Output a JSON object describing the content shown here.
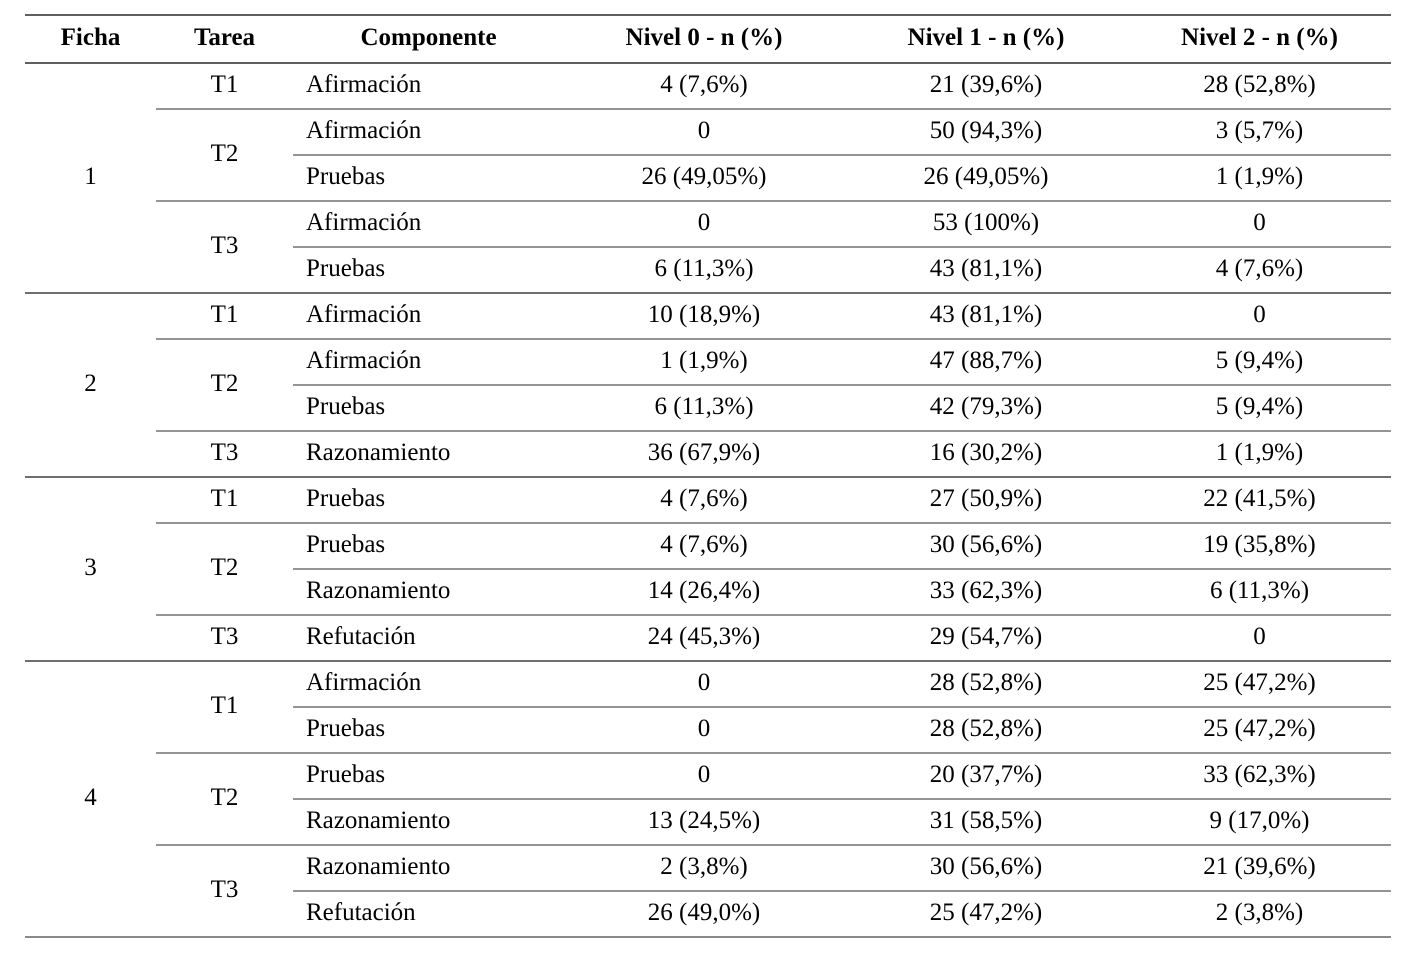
{
  "table": {
    "columns": [
      "Ficha",
      "Tarea",
      "Componente",
      "Nivel 0 - n (%)",
      "Nivel 1 - n (%)",
      "Nivel 2 - n (%)"
    ],
    "groups": [
      {
        "ficha": "1",
        "tareas": [
          {
            "tarea": "T1",
            "rows": [
              {
                "componente": "Afirmación",
                "nivel0": "4 (7,6%)",
                "nivel1": "21 (39,6%)",
                "nivel2": "28 (52,8%)"
              }
            ]
          },
          {
            "tarea": "T2",
            "rows": [
              {
                "componente": "Afirmación",
                "nivel0": "0",
                "nivel1": "50 (94,3%)",
                "nivel2": "3 (5,7%)"
              },
              {
                "componente": "Pruebas",
                "nivel0": "26 (49,05%)",
                "nivel1": "26 (49,05%)",
                "nivel2": "1 (1,9%)"
              }
            ]
          },
          {
            "tarea": "T3",
            "rows": [
              {
                "componente": "Afirmación",
                "nivel0": "0",
                "nivel1": "53 (100%)",
                "nivel2": "0"
              },
              {
                "componente": "Pruebas",
                "nivel0": "6 (11,3%)",
                "nivel1": "43 (81,1%)",
                "nivel2": "4 (7,6%)"
              }
            ]
          }
        ]
      },
      {
        "ficha": "2",
        "tareas": [
          {
            "tarea": "T1",
            "rows": [
              {
                "componente": "Afirmación",
                "nivel0": "10 (18,9%)",
                "nivel1": "43 (81,1%)",
                "nivel2": "0"
              }
            ]
          },
          {
            "tarea": "T2",
            "rows": [
              {
                "componente": "Afirmación",
                "nivel0": "1 (1,9%)",
                "nivel1": "47 (88,7%)",
                "nivel2": "5 (9,4%)"
              },
              {
                "componente": "Pruebas",
                "nivel0": "6 (11,3%)",
                "nivel1": "42 (79,3%)",
                "nivel2": "5 (9,4%)"
              }
            ]
          },
          {
            "tarea": "T3",
            "rows": [
              {
                "componente": "Razonamiento",
                "nivel0": "36 (67,9%)",
                "nivel1": "16 (30,2%)",
                "nivel2": "1 (1,9%)"
              }
            ]
          }
        ]
      },
      {
        "ficha": "3",
        "tareas": [
          {
            "tarea": "T1",
            "rows": [
              {
                "componente": "Pruebas",
                "nivel0": "4 (7,6%)",
                "nivel1": "27 (50,9%)",
                "nivel2": "22 (41,5%)"
              }
            ]
          },
          {
            "tarea": "T2",
            "rows": [
              {
                "componente": "Pruebas",
                "nivel0": "4 (7,6%)",
                "nivel1": "30 (56,6%)",
                "nivel2": "19 (35,8%)"
              },
              {
                "componente": "Razonamiento",
                "nivel0": "14 (26,4%)",
                "nivel1": "33 (62,3%)",
                "nivel2": "6 (11,3%)"
              }
            ]
          },
          {
            "tarea": "T3",
            "rows": [
              {
                "componente": "Refutación",
                "nivel0": "24 (45,3%)",
                "nivel1": "29 (54,7%)",
                "nivel2": "0"
              }
            ]
          }
        ]
      },
      {
        "ficha": "4",
        "tareas": [
          {
            "tarea": "T1",
            "rows": [
              {
                "componente": "Afirmación",
                "nivel0": "0",
                "nivel1": "28 (52,8%)",
                "nivel2": "25 (47,2%)"
              },
              {
                "componente": "Pruebas",
                "nivel0": "0",
                "nivel1": "28 (52,8%)",
                "nivel2": "25 (47,2%)"
              }
            ]
          },
          {
            "tarea": "T2",
            "rows": [
              {
                "componente": "Pruebas",
                "nivel0": "0",
                "nivel1": "20 (37,7%)",
                "nivel2": "33 (62,3%)"
              },
              {
                "componente": "Razonamiento",
                "nivel0": "13 (24,5%)",
                "nivel1": "31 (58,5%)",
                "nivel2": "9 (17,0%)"
              }
            ]
          },
          {
            "tarea": "T3",
            "rows": [
              {
                "componente": "Razonamiento",
                "nivel0": "2 (3,8%)",
                "nivel1": "30 (56,6%)",
                "nivel2": "21 (39,6%)"
              },
              {
                "componente": "Refutación",
                "nivel0": "26 (49,0%)",
                "nivel1": "25 (47,2%)",
                "nivel2": "2 (3,8%)"
              }
            ]
          }
        ]
      }
    ]
  }
}
